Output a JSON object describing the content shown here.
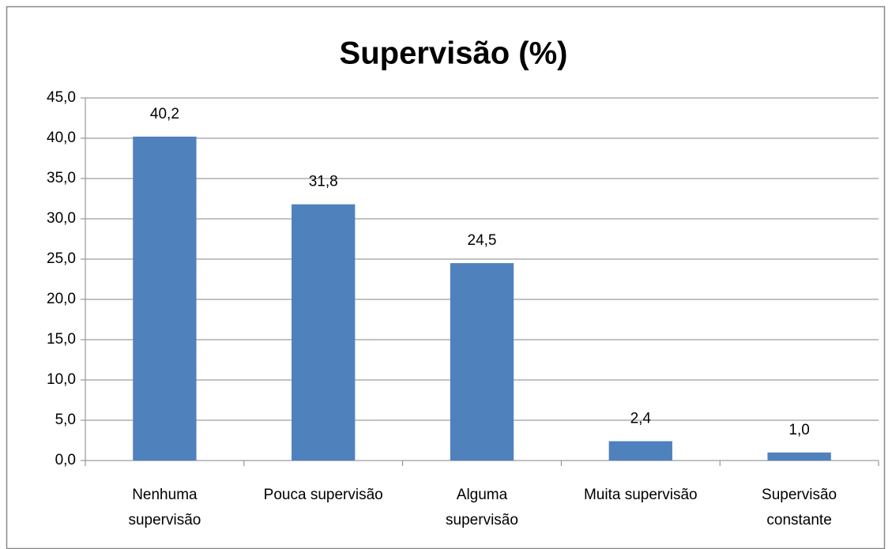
{
  "chart_data": {
    "type": "bar",
    "title": "Supervisão (%)",
    "categories": [
      "Nenhuma\nsupervisão",
      "Pouca supervisão",
      "Alguma\nsupervisão",
      "Muita supervisão",
      "Supervisão\nconstante"
    ],
    "values": [
      40.2,
      31.8,
      24.5,
      2.4,
      1.0
    ],
    "value_labels": [
      "40,2",
      "31,8",
      "24,5",
      "2,4",
      "1,0"
    ],
    "color": "#4f81bd",
    "ylim": [
      0,
      45
    ],
    "yticks": [
      {
        "value": 0,
        "label": "0,0"
      },
      {
        "value": 5,
        "label": "5,0"
      },
      {
        "value": 10,
        "label": "10,0"
      },
      {
        "value": 15,
        "label": "15,0"
      },
      {
        "value": 20,
        "label": "20,0"
      },
      {
        "value": 25,
        "label": "25,0"
      },
      {
        "value": 30,
        "label": "30,0"
      },
      {
        "value": 35,
        "label": "35,0"
      },
      {
        "value": 40,
        "label": "40,0"
      },
      {
        "value": 45,
        "label": "45,0"
      }
    ],
    "grid": true
  }
}
